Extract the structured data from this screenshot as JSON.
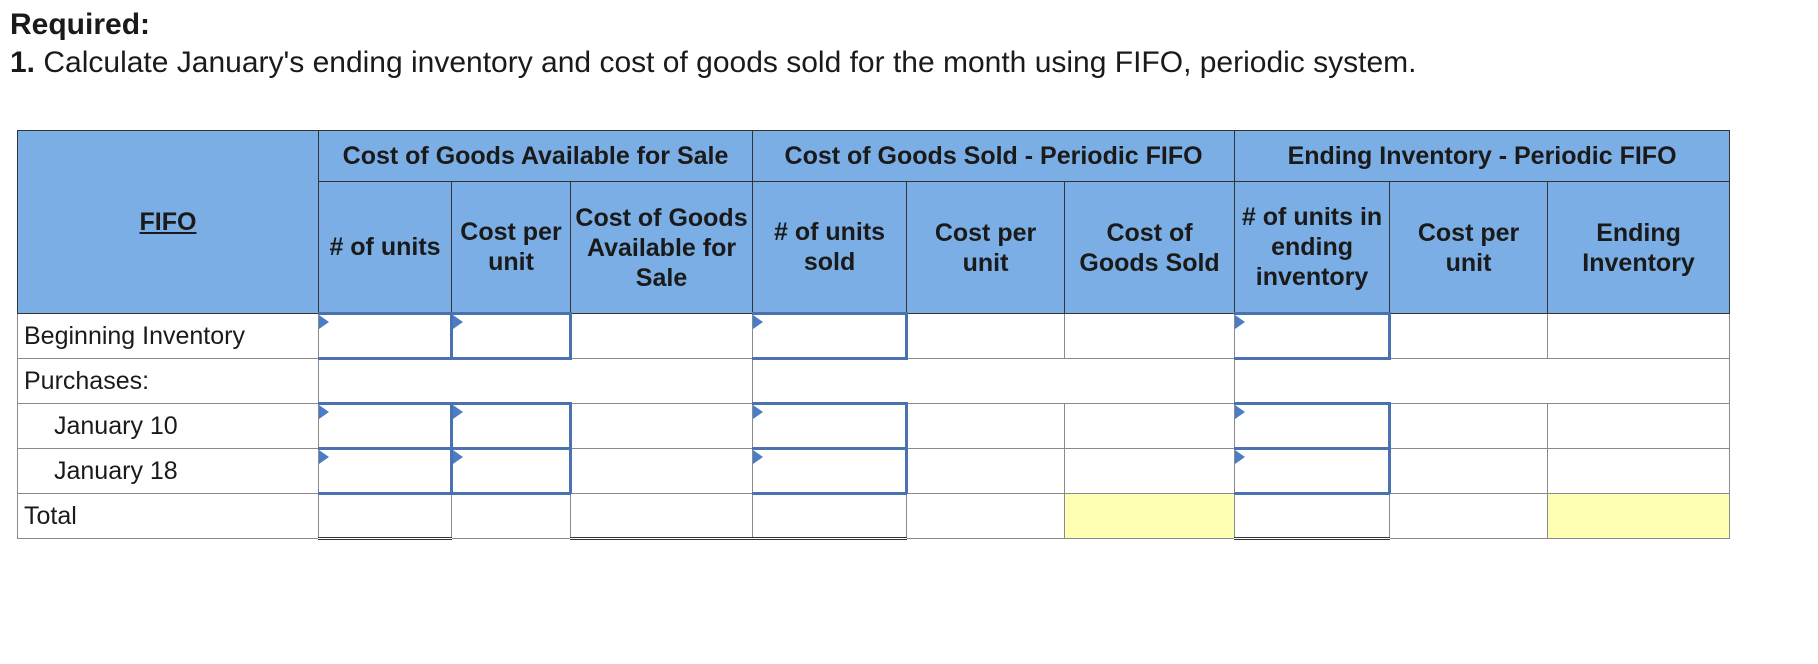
{
  "required": {
    "title": "Required:",
    "number": "1.",
    "instruction": "Calculate January's ending inventory and cost of goods sold for the month using FIFO, periodic system."
  },
  "table": {
    "corner_label": "FIFO",
    "groups": {
      "available": "Cost of Goods Available for Sale",
      "cogs": "Cost of Goods Sold - Periodic FIFO",
      "ending": "Ending Inventory - Periodic FIFO"
    },
    "columns": {
      "avail_units": "# of units",
      "avail_cost_per_unit": "Cost per unit",
      "avail_total": "Cost of Goods Available for Sale",
      "sold_units": "# of units sold",
      "sold_cost_per_unit": "Cost per unit",
      "sold_total": "Cost of Goods Sold",
      "end_units": "# of units in ending inventory",
      "end_cost_per_unit": "Cost per unit",
      "end_total": "Ending Inventory"
    },
    "rows": {
      "beginning": "Beginning Inventory",
      "purchases": "Purchases:",
      "jan10": "January 10",
      "jan18": "January 18",
      "total": "Total"
    }
  },
  "colors": {
    "header_bg": "#7aaee4",
    "highlight": "#ffffb3",
    "input_border": "#4a72b0"
  }
}
